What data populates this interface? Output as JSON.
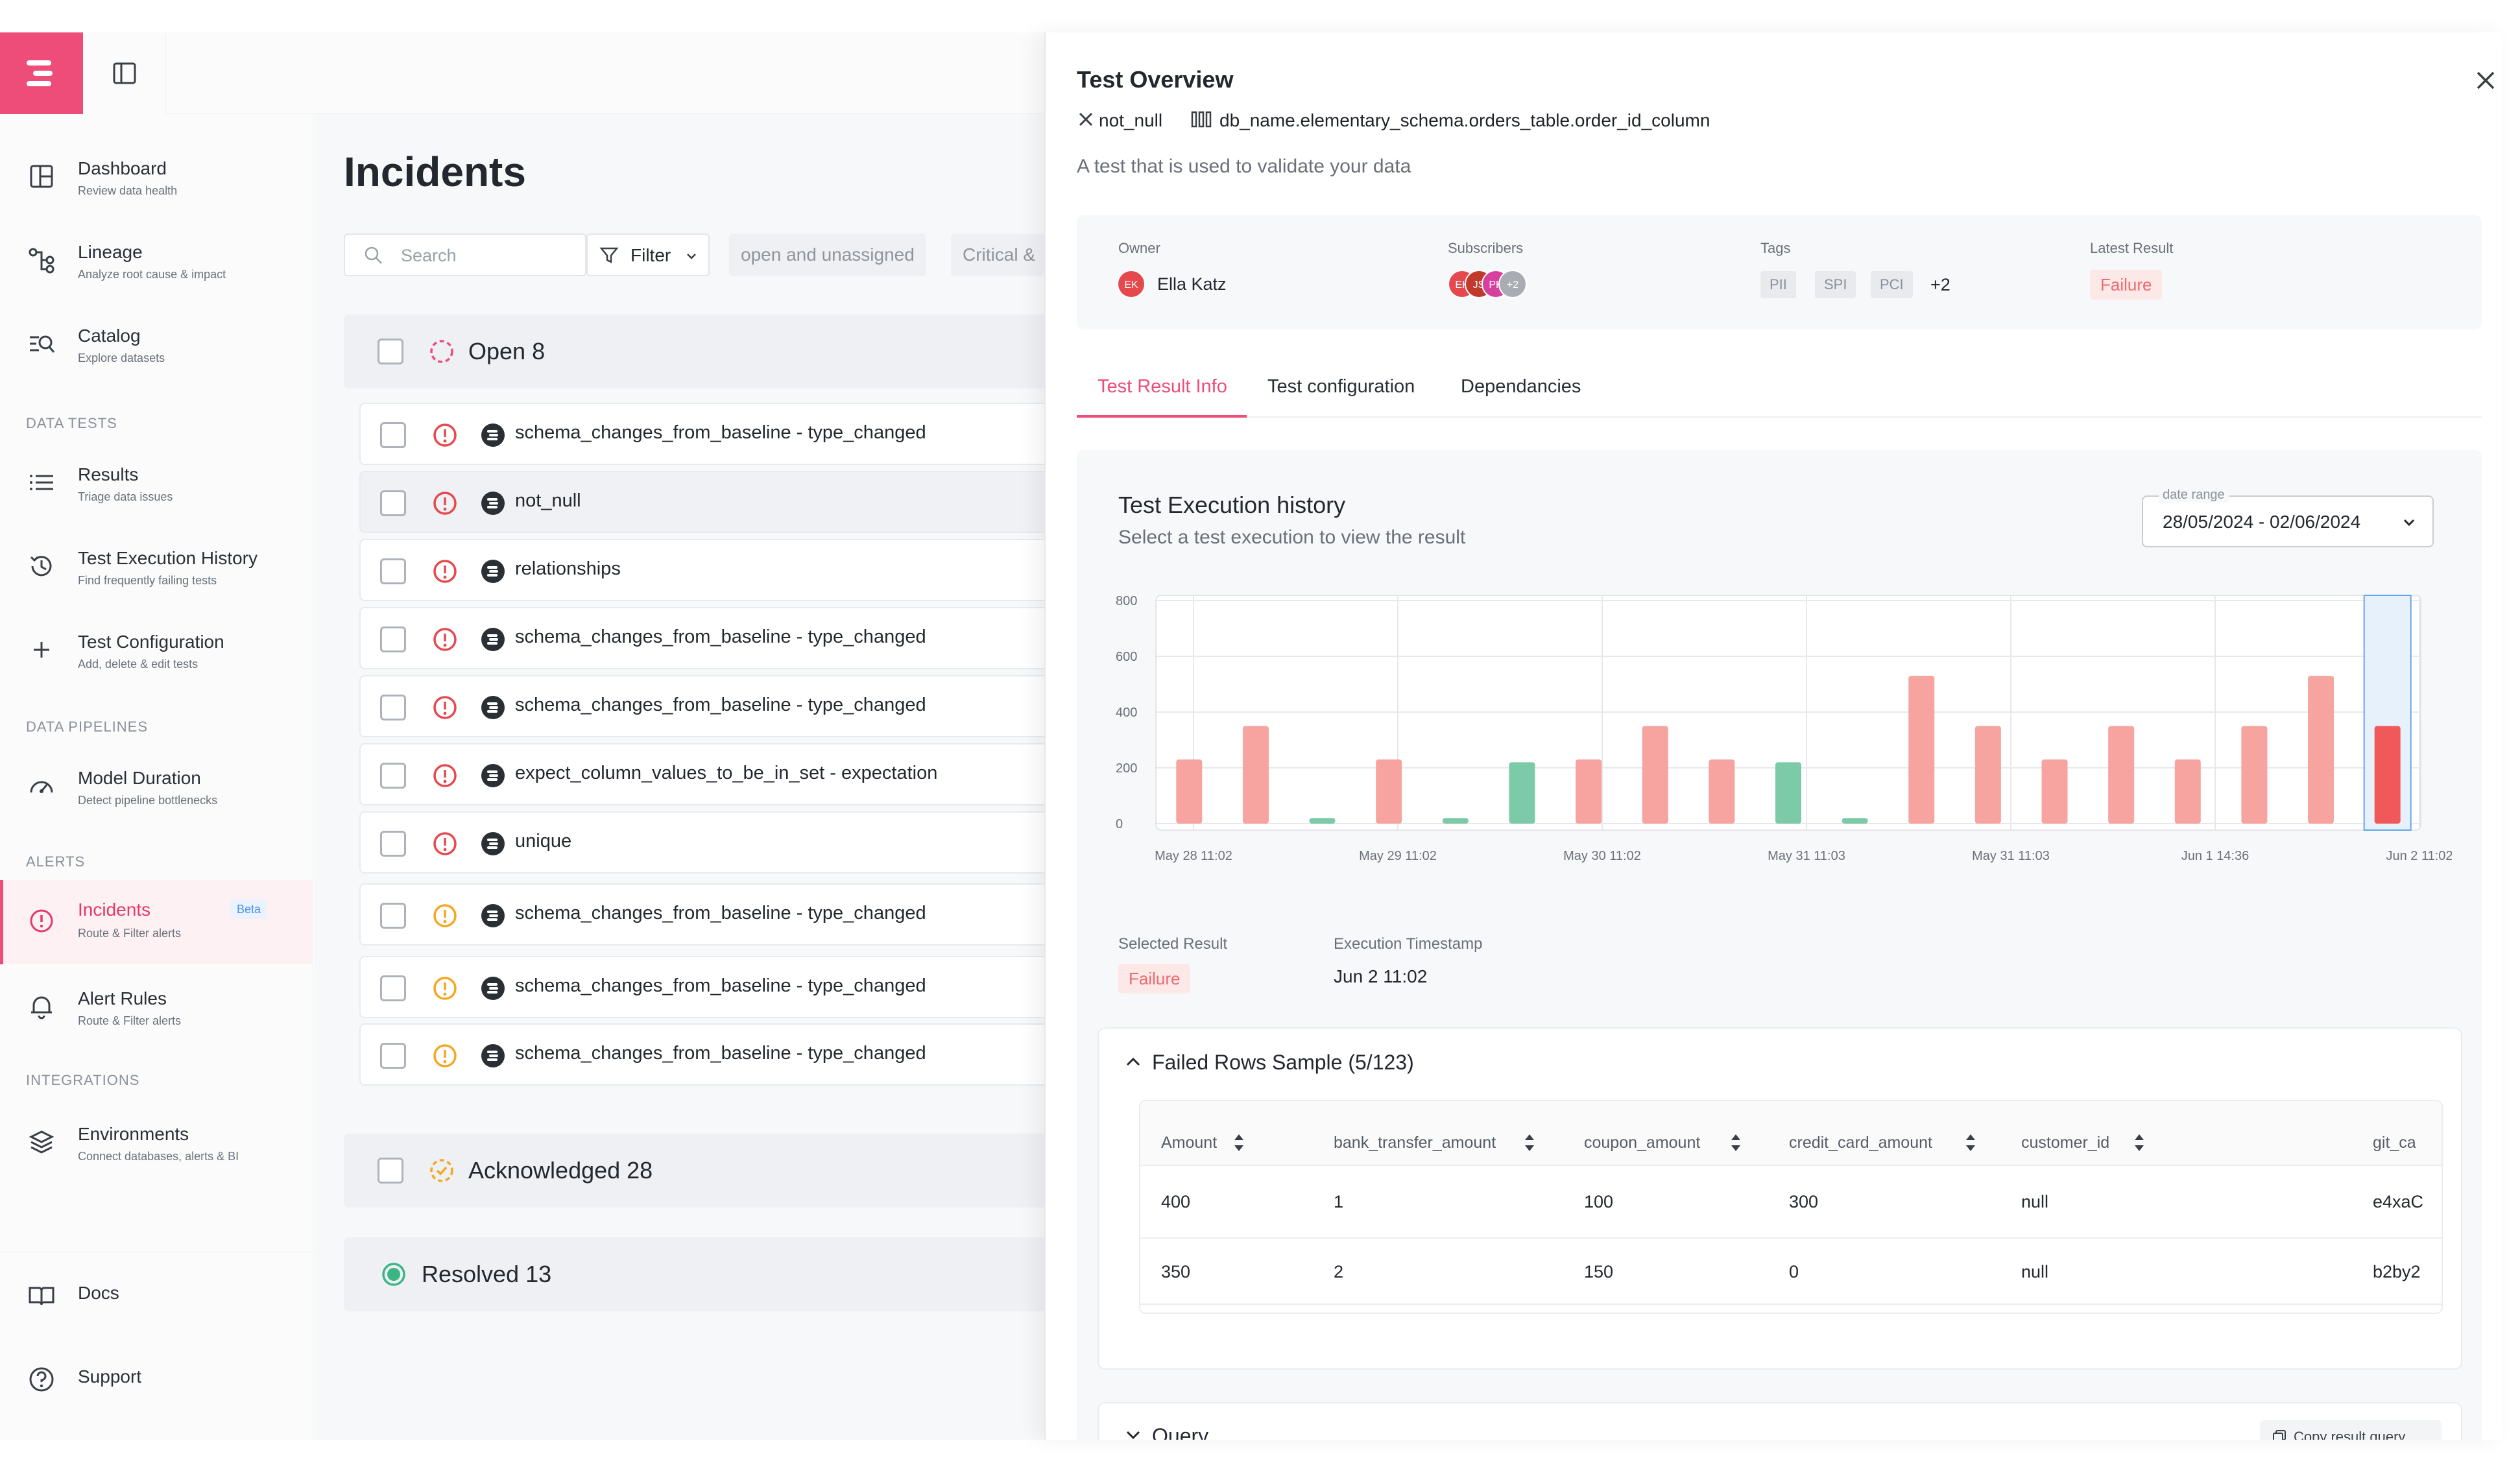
{
  "sidebar": {
    "items": [
      {
        "label": "Dashboard",
        "sub": "Review data health",
        "icon": "dashboard-icon"
      },
      {
        "label": "Lineage",
        "sub": "Analyze root cause & impact",
        "icon": "lineage-icon"
      },
      {
        "label": "Catalog",
        "sub": "Explore datasets",
        "icon": "catalog-icon"
      },
      {
        "label": "Results",
        "sub": "Triage data issues",
        "icon": "list-icon"
      },
      {
        "label": "Test Execution History",
        "sub": "Find frequently failing tests",
        "icon": "history-icon"
      },
      {
        "label": "Test Configuration",
        "sub": "Add, delete & edit tests",
        "icon": "plus-icon"
      },
      {
        "label": "Model Duration",
        "sub": "Detect pipeline bottlenecks",
        "icon": "gauge-icon"
      },
      {
        "label": "Incidents",
        "sub": "Route & Filter alerts",
        "icon": "alert-circle-icon",
        "badge": "Beta"
      },
      {
        "label": "Alert Rules",
        "sub": "Route & Filter alerts",
        "icon": "bell-icon"
      },
      {
        "label": "Environments",
        "sub": "Connect databases, alerts & BI",
        "icon": "layers-icon"
      },
      {
        "label": "Docs",
        "icon": "book-icon"
      },
      {
        "label": "Support",
        "icon": "help-icon"
      }
    ],
    "sections": {
      "data_tests": "DATA TESTS",
      "data_pipelines": "DATA PIPELINES",
      "alerts": "ALERTS",
      "integrations": "INTEGRATIONS"
    }
  },
  "incidents": {
    "title": "Incidents",
    "search_placeholder": "Search",
    "filter_label": "Filter",
    "chips": [
      "open and unassigned",
      "Critical &"
    ],
    "open_group": "Open 8",
    "acknowledged_group": "Acknowledged 28",
    "resolved_group": "Resolved 13",
    "rows": [
      {
        "name": "schema_changes_from_baseline - type_changed",
        "severity": "error"
      },
      {
        "name": "not_null",
        "severity": "error"
      },
      {
        "name": "relationships",
        "severity": "error"
      },
      {
        "name": "schema_changes_from_baseline - type_changed",
        "severity": "error"
      },
      {
        "name": "schema_changes_from_baseline - type_changed",
        "severity": "error"
      },
      {
        "name": "expect_column_values_to_be_in_set - expectation",
        "severity": "error"
      },
      {
        "name": "unique",
        "severity": "error"
      },
      {
        "name": "schema_changes_from_baseline - type_changed",
        "severity": "warn"
      },
      {
        "name": "schema_changes_from_baseline - type_changed",
        "severity": "warn"
      },
      {
        "name": "schema_changes_from_baseline - type_changed",
        "severity": "warn"
      }
    ]
  },
  "drawer": {
    "title": "Test Overview",
    "test_type": "not_null",
    "column_path": "db_name.elementary_schema.orders_table.order_id_column",
    "description": "A test that is used to validate your data",
    "owner_label": "Owner",
    "owner": "Ella Katz",
    "owner_initials": "EK",
    "subscribers_label": "Subscribers",
    "subscribers": [
      "EK",
      "JS",
      "PK"
    ],
    "subscribers_more": "+2",
    "tags_label": "Tags",
    "tags": [
      "PII",
      "SPI",
      "PCI"
    ],
    "tags_more": "+2",
    "latest_result_label": "Latest Result",
    "latest_result": "Failure",
    "tabs": [
      "Test Result Info",
      "Test configuration",
      "Dependancies"
    ],
    "history_title": "Test Execution history",
    "history_sub": "Select a test execution to view the result",
    "date_range_label": "date range",
    "date_range": "28/05/2024 - 02/06/2024",
    "selected_result_label": "Selected Result",
    "selected_result": "Failure",
    "exec_ts_label": "Execution Timestamp",
    "exec_ts": "Jun 2 11:02",
    "failed_rows_title": "Failed Rows Sample (5/123)",
    "table": {
      "headers": [
        "Amount",
        "bank_transfer_amount",
        "coupon_amount",
        "credit_card_amount",
        "customer_id",
        "git_ca"
      ],
      "rows": [
        [
          "400",
          "1",
          "100",
          "300",
          "null",
          "e4xaC"
        ],
        [
          "350",
          "2",
          "150",
          "0",
          "null",
          "b2by2"
        ]
      ]
    },
    "query_title": "Query",
    "copy_query_label": "Copy result query"
  },
  "chart_data": {
    "type": "bar",
    "title": "Test Execution history",
    "ylim": [
      0,
      800
    ],
    "yticks": [
      "0",
      "200",
      "400",
      "600",
      "800"
    ],
    "xtick_labels": [
      "May 28 11:02",
      "May 29 11:02",
      "May 30 11:02",
      "May 31 11:03",
      "May 31 11:03",
      "Jun 1 14:36",
      "Jun 2 11:02"
    ],
    "values": [
      230,
      350,
      20,
      230,
      20,
      220,
      230,
      350,
      230,
      220,
      20,
      530,
      350,
      230,
      350,
      230,
      350,
      530,
      350
    ],
    "status": [
      "fail",
      "fail",
      "pass",
      "fail",
      "pass",
      "pass",
      "fail",
      "fail",
      "fail",
      "pass",
      "pass",
      "fail",
      "fail",
      "fail",
      "fail",
      "fail",
      "fail",
      "fail",
      "fail"
    ],
    "selected_index": 18,
    "colors": {
      "fail": "#f7a39f",
      "pass": "#7ccaa8",
      "selected": "#f0585a"
    }
  },
  "colors": {
    "accent": "#ee4d7a",
    "error": "#e5484d",
    "warn": "#f5a623",
    "success": "#3cb586"
  }
}
